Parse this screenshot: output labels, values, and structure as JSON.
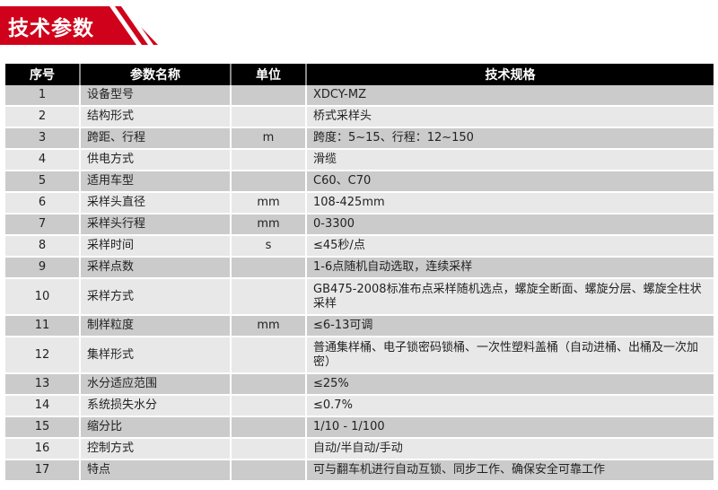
{
  "header": {
    "title": "技术参数",
    "brand_color": "#d0021b"
  },
  "table": {
    "columns": [
      "序号",
      "参数名称",
      "单位",
      "技术规格"
    ],
    "rows": [
      [
        "1",
        "设备型号",
        "",
        "XDCY-MZ"
      ],
      [
        "2",
        "结构形式",
        "",
        "桥式采样头"
      ],
      [
        "3",
        "跨距、行程",
        "m",
        "跨度：5~15、行程：12~150"
      ],
      [
        "4",
        "供电方式",
        "",
        "滑缆"
      ],
      [
        "5",
        "适用车型",
        "",
        "C60、C70"
      ],
      [
        "6",
        "采样头直径",
        "mm",
        "108-425mm"
      ],
      [
        "7",
        "采样头行程",
        "mm",
        "0-3300"
      ],
      [
        "8",
        "采样时间",
        "s",
        "≤45秒/点"
      ],
      [
        "9",
        "采样点数",
        "",
        "1-6点随机自动选取，连续采样"
      ],
      [
        "10",
        "采样方式",
        "",
        "GB475-2008标准布点采样随机选点，螺旋全断面、螺旋分层、螺旋全柱状采样"
      ],
      [
        "11",
        "制样粒度",
        "mm",
        "≤6-13可调"
      ],
      [
        "12",
        "集样形式",
        "",
        "普通集样桶、电子锁密码锁桶、一次性塑料盖桶（自动进桶、出桶及一次加密）"
      ],
      [
        "13",
        "水分适应范围",
        "",
        "≤25%"
      ],
      [
        "14",
        "系统损失水分",
        "",
        "≤0.7%"
      ],
      [
        "15",
        "缩分比",
        "",
        "1/10 - 1/100"
      ],
      [
        "16",
        "控制方式",
        "",
        "自动/半自动/手动"
      ],
      [
        "17",
        "特点",
        "",
        "可与翻车机进行自动互锁、同步工作、确保安全可靠工作"
      ]
    ]
  }
}
